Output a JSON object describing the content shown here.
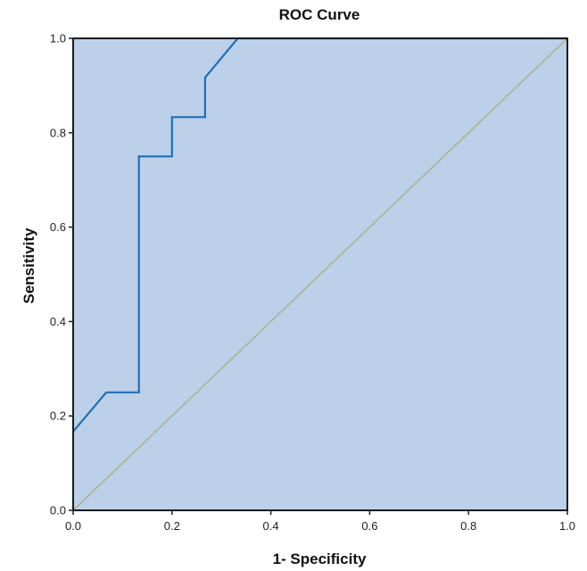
{
  "chart_data": {
    "type": "line",
    "title": "ROC Curve",
    "xlabel": "1- Specificity",
    "ylabel": "Sensitivity",
    "xlim": [
      0.0,
      1.0
    ],
    "ylim": [
      0.0,
      1.0
    ],
    "x_ticks": [
      "0.0",
      "0.2",
      "0.4",
      "0.6",
      "0.8",
      "1.0"
    ],
    "y_ticks": [
      "0.0",
      "0.2",
      "0.4",
      "0.6",
      "0.8",
      "1.0"
    ],
    "grid": false,
    "legend": "none",
    "series": [
      {
        "points": [
          [
            0.0,
            0.167
          ],
          [
            0.067,
            0.25
          ],
          [
            0.133,
            0.25
          ],
          [
            0.133,
            0.75
          ],
          [
            0.2,
            0.75
          ],
          [
            0.2,
            0.833
          ],
          [
            0.267,
            0.833
          ],
          [
            0.267,
            0.917
          ],
          [
            0.333,
            1.0
          ],
          [
            1.0,
            1.0
          ]
        ],
        "color": "#1f6fb4"
      },
      {
        "points": [
          [
            0.0,
            0.0
          ],
          [
            1.0,
            1.0
          ]
        ],
        "color": "#a8b89a"
      }
    ],
    "colors": {
      "plot_background": "#bcd0ea",
      "frame": "#1a1a1a"
    }
  }
}
